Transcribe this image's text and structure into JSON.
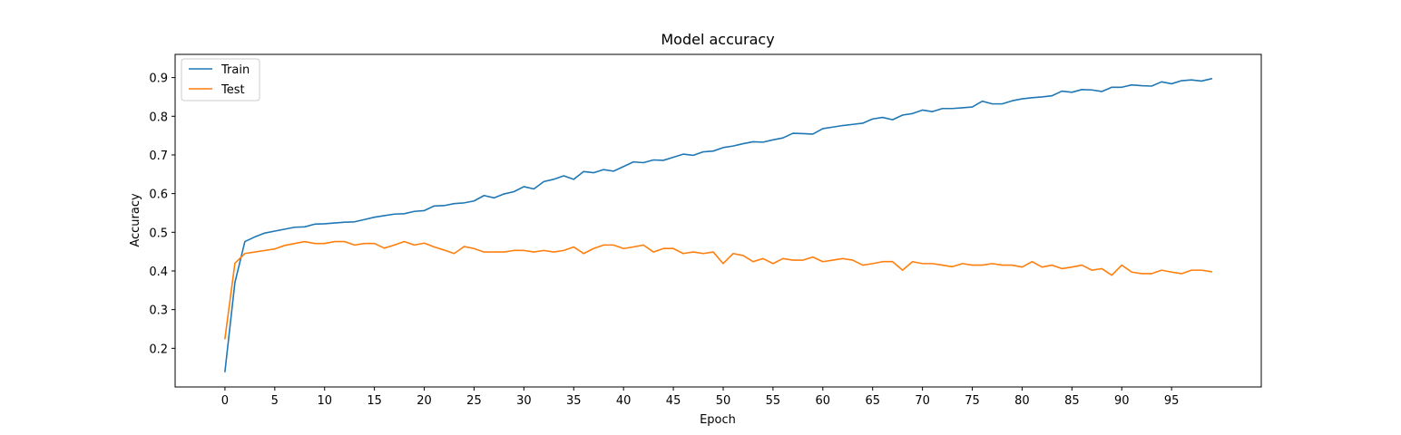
{
  "chart_data": {
    "type": "line",
    "title": "Model accuracy",
    "xlabel": "Epoch",
    "ylabel": "Accuracy",
    "xlim": [
      -5,
      104
    ],
    "ylim": [
      0.1,
      0.96
    ],
    "xticks": [
      0,
      5,
      10,
      15,
      20,
      25,
      30,
      35,
      40,
      45,
      50,
      55,
      60,
      65,
      70,
      75,
      80,
      85,
      90,
      95
    ],
    "yticks": [
      0.2,
      0.3,
      0.4,
      0.5,
      0.6,
      0.7,
      0.8,
      0.9
    ],
    "grid": false,
    "legend_position": "upper left",
    "series": [
      {
        "name": "Train",
        "color": "#1f77b4",
        "x": [
          0,
          1,
          2,
          3,
          4,
          5,
          6,
          7,
          8,
          9,
          10,
          11,
          12,
          13,
          14,
          15,
          16,
          17,
          18,
          19,
          20,
          21,
          22,
          23,
          24,
          25,
          26,
          27,
          28,
          29,
          30,
          31,
          32,
          33,
          34,
          35,
          36,
          37,
          38,
          39,
          40,
          41,
          42,
          43,
          44,
          45,
          46,
          47,
          48,
          49,
          50,
          51,
          52,
          53,
          54,
          55,
          56,
          57,
          58,
          59,
          60,
          61,
          62,
          63,
          64,
          65,
          66,
          67,
          68,
          69,
          70,
          71,
          72,
          73,
          74,
          75,
          76,
          77,
          78,
          79,
          80,
          81,
          82,
          83,
          84,
          85,
          86,
          87,
          88,
          89,
          90,
          91,
          92,
          93,
          94,
          95,
          96,
          97,
          98,
          99
        ],
        "values": [
          0.14,
          0.37,
          0.476,
          0.488,
          0.498,
          0.503,
          0.508,
          0.513,
          0.514,
          0.521,
          0.522,
          0.524,
          0.526,
          0.527,
          0.533,
          0.539,
          0.543,
          0.547,
          0.548,
          0.554,
          0.556,
          0.568,
          0.569,
          0.574,
          0.576,
          0.581,
          0.595,
          0.589,
          0.599,
          0.605,
          0.618,
          0.612,
          0.631,
          0.637,
          0.646,
          0.637,
          0.657,
          0.654,
          0.662,
          0.658,
          0.67,
          0.682,
          0.68,
          0.687,
          0.686,
          0.694,
          0.702,
          0.699,
          0.708,
          0.71,
          0.719,
          0.723,
          0.729,
          0.734,
          0.733,
          0.739,
          0.744,
          0.756,
          0.755,
          0.754,
          0.768,
          0.772,
          0.776,
          0.779,
          0.782,
          0.793,
          0.797,
          0.791,
          0.803,
          0.807,
          0.816,
          0.812,
          0.82,
          0.82,
          0.822,
          0.824,
          0.839,
          0.832,
          0.832,
          0.84,
          0.845,
          0.848,
          0.85,
          0.853,
          0.865,
          0.862,
          0.869,
          0.868,
          0.864,
          0.875,
          0.875,
          0.881,
          0.879,
          0.878,
          0.889,
          0.884,
          0.892,
          0.894,
          0.891,
          0.897
        ]
      },
      {
        "name": "Test",
        "color": "#ff7f0e",
        "x": [
          0,
          1,
          2,
          3,
          4,
          5,
          6,
          7,
          8,
          9,
          10,
          11,
          12,
          13,
          14,
          15,
          16,
          17,
          18,
          19,
          20,
          21,
          22,
          23,
          24,
          25,
          26,
          27,
          28,
          29,
          30,
          31,
          32,
          33,
          34,
          35,
          36,
          37,
          38,
          39,
          40,
          41,
          42,
          43,
          44,
          45,
          46,
          47,
          48,
          49,
          50,
          51,
          52,
          53,
          54,
          55,
          56,
          57,
          58,
          59,
          60,
          61,
          62,
          63,
          64,
          65,
          66,
          67,
          68,
          69,
          70,
          71,
          72,
          73,
          74,
          75,
          76,
          77,
          78,
          79,
          80,
          81,
          82,
          83,
          84,
          85,
          86,
          87,
          88,
          89,
          90,
          91,
          92,
          93,
          94,
          95,
          96,
          97,
          98,
          99
        ],
        "values": [
          0.225,
          0.42,
          0.445,
          0.449,
          0.453,
          0.457,
          0.466,
          0.471,
          0.476,
          0.471,
          0.471,
          0.476,
          0.476,
          0.467,
          0.471,
          0.471,
          0.459,
          0.467,
          0.476,
          0.467,
          0.472,
          0.462,
          0.454,
          0.445,
          0.463,
          0.458,
          0.449,
          0.449,
          0.449,
          0.453,
          0.453,
          0.449,
          0.453,
          0.449,
          0.453,
          0.462,
          0.445,
          0.458,
          0.467,
          0.467,
          0.458,
          0.462,
          0.467,
          0.449,
          0.458,
          0.458,
          0.445,
          0.449,
          0.445,
          0.449,
          0.419,
          0.445,
          0.44,
          0.424,
          0.432,
          0.419,
          0.432,
          0.428,
          0.428,
          0.436,
          0.424,
          0.428,
          0.432,
          0.428,
          0.415,
          0.419,
          0.424,
          0.424,
          0.402,
          0.424,
          0.419,
          0.419,
          0.415,
          0.411,
          0.419,
          0.415,
          0.415,
          0.419,
          0.415,
          0.415,
          0.41,
          0.424,
          0.41,
          0.415,
          0.406,
          0.41,
          0.415,
          0.402,
          0.406,
          0.389,
          0.415,
          0.397,
          0.393,
          0.393,
          0.402,
          0.397,
          0.393,
          0.402,
          0.402,
          0.398
        ]
      }
    ]
  }
}
